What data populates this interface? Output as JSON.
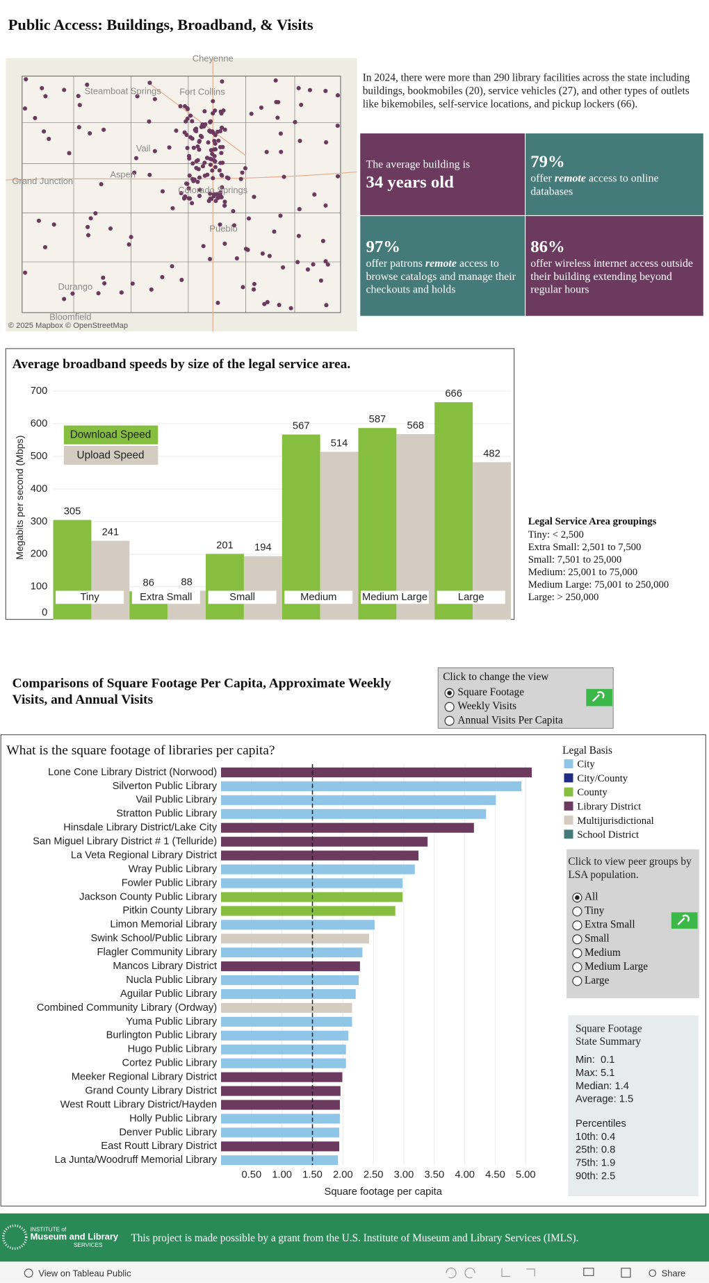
{
  "header": {
    "title": "Public Access: Buildings, Broadband, & Visits"
  },
  "map": {
    "labels": [
      "Cheyenne",
      "Steamboat Springs",
      "Fort Collins",
      "Vail",
      "Aspen",
      "Grand Junction",
      "Colorado Springs",
      "Pueblo",
      "Durango",
      "Bloomfield"
    ],
    "attribution": "© 2025 Mapbox  © OpenStreetMap"
  },
  "intro": "In 2024, there were more than 290 library facilities across the state including buildings, bookmobiles (20), service vehicles (27), and other types of outlets like bikemobiles, self-service locations, and pickup lockers (66).",
  "stats": [
    {
      "lead": "The average building is",
      "big": "34 years old",
      "color": "#6b3a5e"
    },
    {
      "big": "79%",
      "pre": "offer ",
      "em": "remote",
      "post": " access to online databases",
      "color": "#447a78"
    },
    {
      "big": "97%",
      "pre": "offer patrons ",
      "em": "remote",
      "post": " access to browse catalogs and manage their checkouts and holds",
      "color": "#447a78"
    },
    {
      "big": "86%",
      "pre": "",
      "em": "",
      "post": "offer wireless internet access outside their building extending beyond regular hours",
      "color": "#6b3a5e"
    }
  ],
  "chart_data": [
    {
      "type": "bar",
      "title": "Average broadband speeds by size of the legal service area.",
      "ylabel": "Megabits per second (Mbps)",
      "categories": [
        "Tiny",
        "Extra Small",
        "Small",
        "Medium",
        "Medium Large",
        "Large"
      ],
      "series": [
        {
          "name": "Download Speed",
          "color": "#86bf3f",
          "values": [
            305,
            86,
            201,
            567,
            587,
            666
          ]
        },
        {
          "name": "Upload Speed",
          "color": "#d4ccc0",
          "values": [
            241,
            88,
            194,
            514,
            568,
            482
          ]
        }
      ],
      "ylim": [
        0,
        700
      ],
      "yticks": [
        0,
        100,
        200,
        300,
        400,
        500,
        600,
        700
      ],
      "grid": true
    },
    {
      "type": "barh",
      "title": "What is the square footage of libraries per capita?",
      "xlabel": "Square footage per capita",
      "categories": [
        "Lone Cone Library District (Norwood)",
        "Silverton Public Library",
        "Vail Public Library",
        "Stratton Public Library",
        "Hinsdale Library District/Lake City",
        "San Miguel Library District # 1 (Telluride)",
        "La Veta Regional Library District",
        "Wray Public Library",
        "Fowler Public Library",
        "Jackson County Public Library",
        "Pitkin County Library",
        "Limon Memorial Library",
        "Swink School/Public Library",
        "Flagler Community Library",
        "Mancos Library District",
        "Nucla Public Library",
        "Aguilar Public Library",
        "Combined Community Library (Ordway)",
        "Yuma Public Library",
        "Burlington Public Library",
        "Hugo Public Library",
        "Cortez Public Library",
        "Meeker Regional Library District",
        "Grand County Library District",
        "West Routt Library District/Hayden",
        "Holly Public Library",
        "Denver Public Library",
        "East Routt Library District",
        "La Junta/Woodruff Memorial Library"
      ],
      "values": [
        5.1,
        4.93,
        4.51,
        4.35,
        4.15,
        3.39,
        3.24,
        3.18,
        2.98,
        2.98,
        2.86,
        2.52,
        2.43,
        2.32,
        2.28,
        2.26,
        2.21,
        2.15,
        2.15,
        2.09,
        2.05,
        2.05,
        1.99,
        1.96,
        1.95,
        1.95,
        1.94,
        1.94,
        1.92
      ],
      "colors": [
        "#6b3a5e",
        "#8fc6e8",
        "#8fc6e8",
        "#8fc6e8",
        "#6b3a5e",
        "#6b3a5e",
        "#6b3a5e",
        "#8fc6e8",
        "#8fc6e8",
        "#86bf3f",
        "#86bf3f",
        "#8fc6e8",
        "#d4ccc0",
        "#8fc6e8",
        "#6b3a5e",
        "#8fc6e8",
        "#8fc6e8",
        "#d4ccc0",
        "#8fc6e8",
        "#8fc6e8",
        "#8fc6e8",
        "#8fc6e8",
        "#6b3a5e",
        "#6b3a5e",
        "#6b3a5e",
        "#8fc6e8",
        "#8fc6e8",
        "#6b3a5e",
        "#8fc6e8"
      ],
      "xlim": [
        0,
        5.2
      ],
      "xticks": [
        {
          "value": 0.5,
          "label": "0.50"
        },
        {
          "value": 1,
          "label": "1.00"
        },
        {
          "value": 1.5,
          "label": "1.50"
        },
        {
          "value": 2,
          "label": "2.00"
        },
        {
          "value": 2.5,
          "label": "2.50"
        },
        {
          "value": 3,
          "label": "3.00"
        },
        {
          "value": 3.5,
          "label": "3.50"
        },
        {
          "value": 4,
          "label": "4.00"
        },
        {
          "value": 4.5,
          "label": "4.50"
        },
        {
          "value": 5,
          "label": "5.00"
        }
      ],
      "reference_line": 1.5,
      "grid": true,
      "legend": {
        "title": "Legal Basis",
        "entries": [
          {
            "name": "City",
            "color": "#8fc6e8"
          },
          {
            "name": "City/County",
            "color": "#1f2d86"
          },
          {
            "name": "County",
            "color": "#86bf3f"
          },
          {
            "name": "Library District",
            "color": "#6b3a5e"
          },
          {
            "name": "Multijurisdictional",
            "color": "#d4ccc0"
          },
          {
            "name": "School District",
            "color": "#447a78"
          }
        ]
      }
    }
  ],
  "groupings": {
    "title": "Legal Service Area groupings",
    "lines": [
      "Tiny: < 2,500",
      "Extra Small: 2,501 to 7,500",
      "Small: 7,501 to 25,000",
      "Medium: 25,001 to 75,000",
      "Medium Large: 75,001 to 250,000",
      "Large: > 250,000"
    ]
  },
  "section2": {
    "title": "Comparisons of Square Footage Per Capita, Approximate Weekly Visits, and Annual Visits"
  },
  "view_control": {
    "prompt": "Click to change the view",
    "options": [
      "Square Footage",
      "Weekly Visits",
      "Annual Visits Per Capita"
    ],
    "selected": 0
  },
  "peer_control": {
    "prompt": "Click to view peer groups by LSA population.",
    "options": [
      "All",
      "Tiny",
      "Extra Small",
      "Small",
      "Medium",
      "Medium Large",
      "Large"
    ],
    "selected": 0
  },
  "summary": {
    "title": "Square Footage State Summary",
    "lines": [
      "Min:  0.1",
      "Max: 5.1",
      "Median: 1.4",
      "Average: 1.5"
    ],
    "percentiles_title": "Percentiles",
    "percentiles": [
      "10th: 0.4",
      "25th: 0.8",
      "75th: 1.9",
      "90th: 2.5"
    ]
  },
  "footer": {
    "logo_top": "INSTITUTE of",
    "logo_main": "Museum and Library",
    "logo_bottom": "SERVICES",
    "text": "This project is made possible by a grant from the U.S. Institute of Museum and Library Services (IMLS)."
  },
  "toolbar": {
    "view": "View on Tableau Public",
    "share": "Share"
  }
}
